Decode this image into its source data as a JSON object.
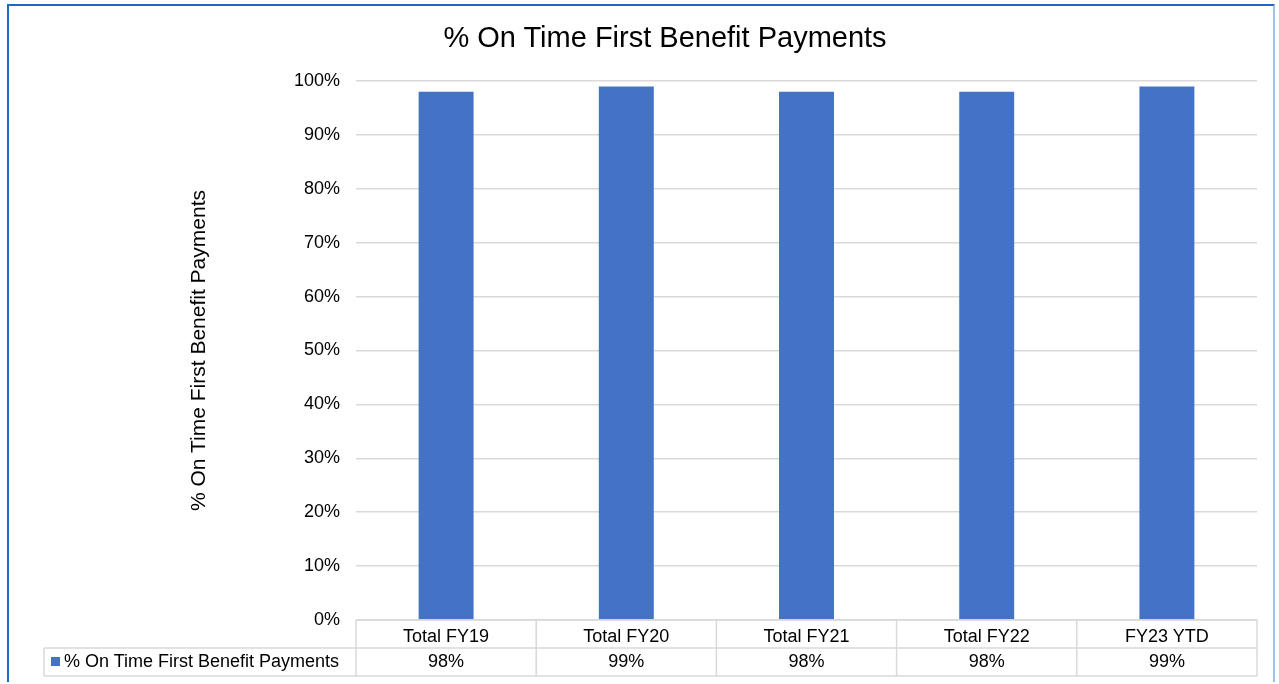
{
  "chart_data": {
    "type": "bar",
    "title": "% On Time First Benefit Payments",
    "ylabel": "% On Time First Benefit Payments",
    "categories": [
      "Total FY19",
      "Total FY20",
      "Total FY21",
      "Total FY22",
      "FY23 YTD"
    ],
    "series": [
      {
        "name": "% On Time First Benefit Payments",
        "color": "#4472c4",
        "values": [
          98,
          99,
          98,
          98,
          99
        ],
        "value_labels": [
          "98%",
          "99%",
          "98%",
          "98%",
          "99%"
        ]
      }
    ],
    "ylim": [
      0,
      100
    ],
    "yticks": [
      {
        "value": 0,
        "label": "0%"
      },
      {
        "value": 10,
        "label": "10%"
      },
      {
        "value": 20,
        "label": "20%"
      },
      {
        "value": 30,
        "label": "30%"
      },
      {
        "value": 40,
        "label": "40%"
      },
      {
        "value": 50,
        "label": "50%"
      },
      {
        "value": 60,
        "label": "60%"
      },
      {
        "value": 70,
        "label": "70%"
      },
      {
        "value": 80,
        "label": "80%"
      },
      {
        "value": 90,
        "label": "90%"
      },
      {
        "value": 100,
        "label": "100%"
      }
    ],
    "grid": "y",
    "legend": "bottom"
  }
}
